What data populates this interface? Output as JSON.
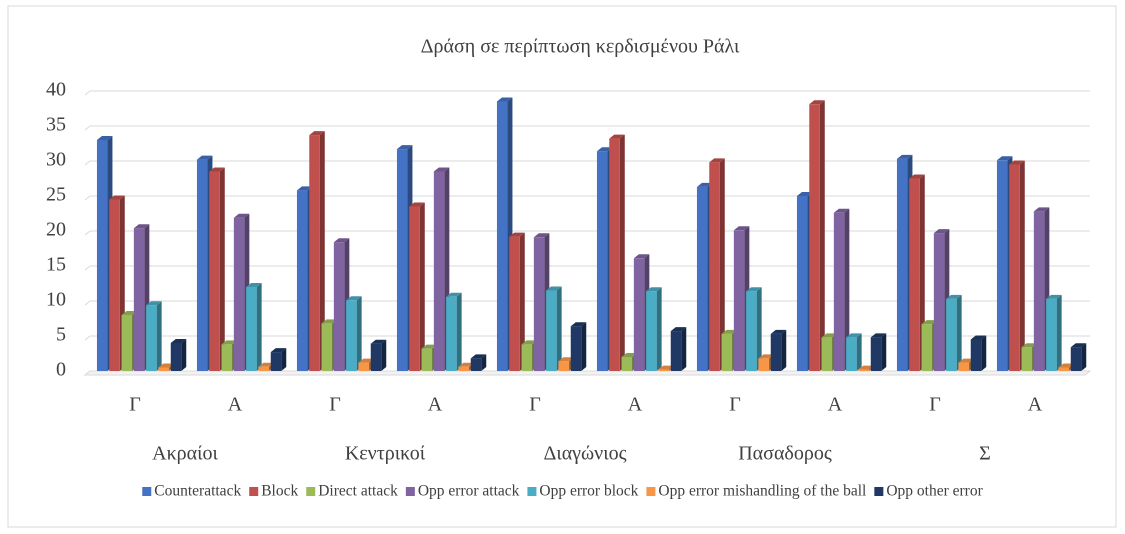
{
  "chart_data": {
    "type": "bar3d",
    "title": "Δράση σε περίπτωση κερδισμένου Ράλι",
    "categories": [
      "Γ",
      "Α",
      "Γ",
      "Α",
      "Γ",
      "Α",
      "Γ",
      "Α",
      "Γ",
      "Α"
    ],
    "groups": [
      "Ακραίοι",
      "Κεντρικοί",
      "Διαγώνιος",
      "Πασαδορος",
      "Σ"
    ],
    "series": [
      {
        "name": "Counterattack",
        "color": "#4472c4",
        "values": [
          33,
          30.2,
          25.8,
          31.7,
          38.5,
          31.4,
          26.3,
          25,
          30.3,
          30.1
        ]
      },
      {
        "name": "Block",
        "color": "#c0504d",
        "values": [
          24.5,
          28.5,
          33.7,
          23.5,
          19.2,
          33.2,
          29.8,
          38.1,
          27.5,
          29.5
        ]
      },
      {
        "name": "Direct attack",
        "color": "#9bbb59",
        "values": [
          8,
          3.8,
          6.8,
          3.2,
          3.8,
          2,
          5.3,
          4.8,
          6.7,
          3.4
        ]
      },
      {
        "name": "Opp error attack",
        "color": "#8064a2",
        "values": [
          20.4,
          21.9,
          18.4,
          28.5,
          19.1,
          16.1,
          20.1,
          22.6,
          19.7,
          22.8
        ]
      },
      {
        "name": "Opp error block",
        "color": "#4bacc6",
        "values": [
          9.4,
          12,
          10.1,
          10.6,
          11.5,
          11.4,
          11.4,
          4.8,
          10.3,
          10.3
        ]
      },
      {
        "name": "Opp error mishandling of the ball",
        "color": "#f79646",
        "values": [
          0.5,
          0.6,
          1.2,
          0.6,
          1.4,
          0.2,
          1.8,
          0.2,
          1.2,
          0.5
        ]
      },
      {
        "name": "Opp other error",
        "color": "#1f3864",
        "values": [
          4,
          2.7,
          3.9,
          1.8,
          6.4,
          5.7,
          5.3,
          4.8,
          4.5,
          3.4
        ]
      }
    ],
    "ylim": [
      0,
      40
    ],
    "yticks": [
      0,
      5,
      10,
      15,
      20,
      25,
      30,
      35,
      40
    ],
    "grid": true,
    "legend": "bottom"
  }
}
